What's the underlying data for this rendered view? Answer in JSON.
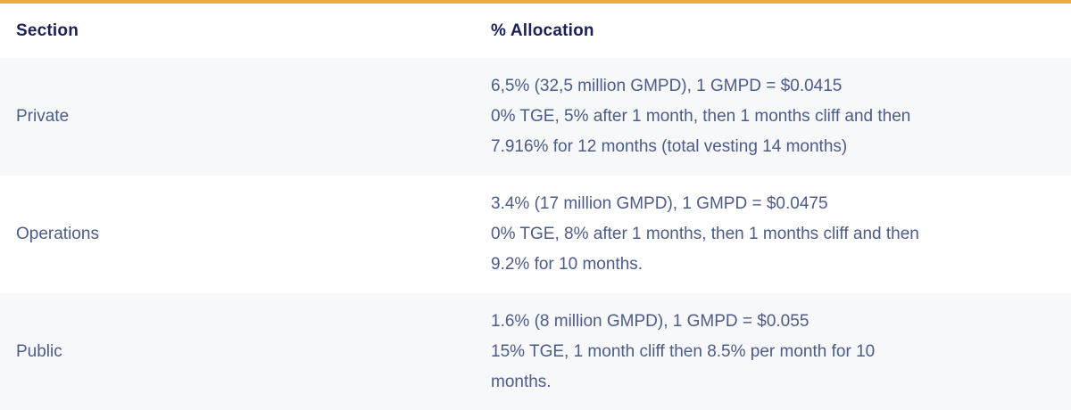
{
  "accent_color": "#F0A93C",
  "table": {
    "columns": {
      "section": "Section",
      "allocation": "% Allocation"
    },
    "rows": [
      {
        "section": "Private",
        "allocation_lines": [
          "6,5% (32,5 million GMPD), 1 GMPD = $0.0415",
          "0% TGE, 5% after 1 month, then 1 months cliff and then",
          "7.916% for 12 months (total vesting 14 months)"
        ]
      },
      {
        "section": "Operations",
        "allocation_lines": [
          "3.4% (17 million GMPD), 1 GMPD = $0.0475",
          "0% TGE, 8% after 1 months, then 1 months cliff and then",
          "9.2% for 10 months."
        ]
      },
      {
        "section": "Public",
        "allocation_lines": [
          "1.6% (8 million GMPD), 1 GMPD = $0.055",
          "15% TGE, 1 month cliff then 8.5% per month for 10",
          "months."
        ]
      }
    ]
  }
}
